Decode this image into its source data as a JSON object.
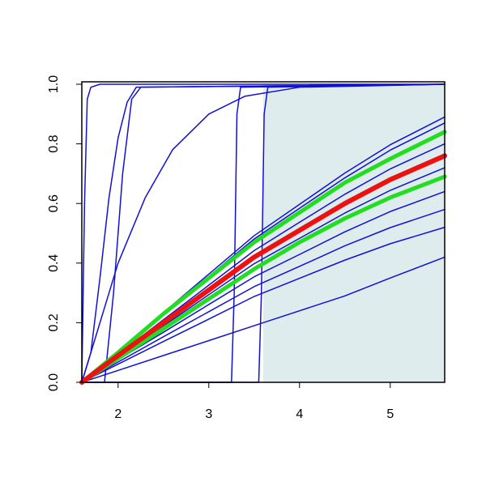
{
  "chart_data": {
    "type": "line",
    "xlim": [
      1.6,
      5.6
    ],
    "xticks": [
      2,
      3,
      4,
      5
    ],
    "ylim": [
      0,
      1
    ],
    "yticks": [
      {
        "value": 0,
        "label": "0.0"
      },
      0.2,
      0.4,
      0.6,
      0.8,
      {
        "value": 1,
        "label": "1.0"
      }
    ],
    "shaded_x": [
      3.6,
      5.6
    ],
    "shade_color": "#dfeced",
    "series": [
      {
        "color": "#1010d8",
        "width": 1.5,
        "x": [
          1.6,
          2,
          2.5,
          3,
          3.5,
          4,
          4.5,
          5,
          5.6
        ],
        "values": [
          0,
          0.105,
          0.234,
          0.363,
          0.492,
          0.597,
          0.702,
          0.797,
          0.89
        ]
      },
      {
        "color": "#1010d8",
        "width": 1.5,
        "x": [
          1.6,
          2,
          2.5,
          3,
          3.5,
          4,
          4.5,
          5,
          5.6
        ],
        "values": [
          0,
          0.103,
          0.229,
          0.355,
          0.481,
          0.584,
          0.686,
          0.779,
          0.87
        ]
      },
      {
        "color": "#1010d8",
        "width": 1.5,
        "x": [
          1.6,
          2,
          2.5,
          3,
          3.5,
          4,
          4.5,
          5,
          5.6
        ],
        "values": [
          0,
          0.094,
          0.21,
          0.326,
          0.442,
          0.537,
          0.631,
          0.716,
          0.8
        ]
      },
      {
        "color": "#1010d8",
        "width": 1.5,
        "x": [
          1.6,
          2,
          2.5,
          3,
          3.5,
          4,
          4.5,
          5,
          5.6
        ],
        "values": [
          0,
          0.085,
          0.189,
          0.294,
          0.398,
          0.483,
          0.568,
          0.644,
          0.72
        ]
      },
      {
        "color": "#1010d8",
        "width": 1.5,
        "x": [
          1.6,
          2,
          2.5,
          3,
          3.5,
          4,
          4.5,
          5,
          5.6
        ],
        "values": [
          0,
          0.076,
          0.168,
          0.261,
          0.354,
          0.429,
          0.505,
          0.573,
          0.64
        ]
      },
      {
        "color": "#1010d8",
        "width": 1.5,
        "x": [
          1.6,
          2,
          2.5,
          3,
          3.5,
          4,
          4.5,
          5,
          5.6
        ],
        "values": [
          0,
          0.068,
          0.153,
          0.237,
          0.321,
          0.389,
          0.458,
          0.519,
          0.58
        ]
      },
      {
        "color": "#1010d8",
        "width": 1.5,
        "x": [
          1.6,
          2,
          2.5,
          3,
          3.5,
          4,
          4.5,
          5,
          5.6
        ],
        "values": [
          0,
          0.061,
          0.137,
          0.212,
          0.288,
          0.349,
          0.41,
          0.465,
          0.52
        ]
      },
      {
        "color": "#1010d8",
        "width": 1.5,
        "x": [
          1.6,
          2,
          2.5,
          3,
          3.5,
          4,
          4.5,
          5,
          5.6
        ],
        "values": [
          0,
          0.04,
          0.09,
          0.14,
          0.19,
          0.24,
          0.29,
          0.35,
          0.42
        ]
      },
      {
        "color": "#1010d8",
        "width": 1.5,
        "x": [
          1.6,
          1.63,
          1.66,
          1.7,
          1.8,
          5.6
        ],
        "values": [
          0,
          0.6,
          0.95,
          0.99,
          1,
          1
        ]
      },
      {
        "color": "#1010d8",
        "width": 1.5,
        "x": [
          1.6,
          1.7,
          1.8,
          1.9,
          2.0,
          2.1,
          2.2,
          5.6
        ],
        "values": [
          0,
          0.1,
          0.35,
          0.62,
          0.82,
          0.94,
          0.99,
          1
        ]
      },
      {
        "color": "#1010d8",
        "width": 1.5,
        "x": [
          1.85,
          1.95,
          2.05,
          2.15,
          2.25,
          5.6
        ],
        "values": [
          0,
          0.3,
          0.7,
          0.95,
          0.99,
          1
        ]
      },
      {
        "color": "#1010d8",
        "width": 1.5,
        "x": [
          1.6,
          1.8,
          2.0,
          2.3,
          2.6,
          3.0,
          3.4,
          4,
          5.6
        ],
        "values": [
          0,
          0.2,
          0.4,
          0.62,
          0.78,
          0.9,
          0.96,
          0.99,
          1
        ]
      },
      {
        "color": "#1010d8",
        "width": 1.5,
        "x": [
          1.6,
          3.25,
          3.28,
          3.31,
          3.35,
          5.6
        ],
        "values": [
          0,
          0,
          0.3,
          0.9,
          0.99,
          1
        ]
      },
      {
        "color": "#1010d8",
        "width": 1.5,
        "x": [
          1.6,
          3.55,
          3.58,
          3.61,
          3.65,
          5.6
        ],
        "values": [
          0,
          0,
          0.3,
          0.9,
          0.99,
          1
        ]
      },
      {
        "color": "#22dd22",
        "width": 5,
        "x": [
          1.6,
          2,
          2.5,
          3,
          3.5,
          4,
          4.5,
          5,
          5.6
        ],
        "values": [
          0,
          0.1,
          0.23,
          0.35,
          0.47,
          0.57,
          0.67,
          0.75,
          0.84
        ]
      },
      {
        "color": "#22dd22",
        "width": 5,
        "x": [
          1.6,
          2,
          2.5,
          3,
          3.5,
          4,
          4.5,
          5,
          5.6
        ],
        "values": [
          0,
          0.08,
          0.18,
          0.28,
          0.38,
          0.47,
          0.55,
          0.62,
          0.69
        ]
      },
      {
        "color": "#ee1111",
        "width": 6,
        "x": [
          1.6,
          2,
          2.5,
          3,
          3.5,
          4,
          4.5,
          5,
          5.6
        ],
        "values": [
          0,
          0.09,
          0.2,
          0.31,
          0.42,
          0.51,
          0.6,
          0.68,
          0.76
        ]
      }
    ]
  }
}
